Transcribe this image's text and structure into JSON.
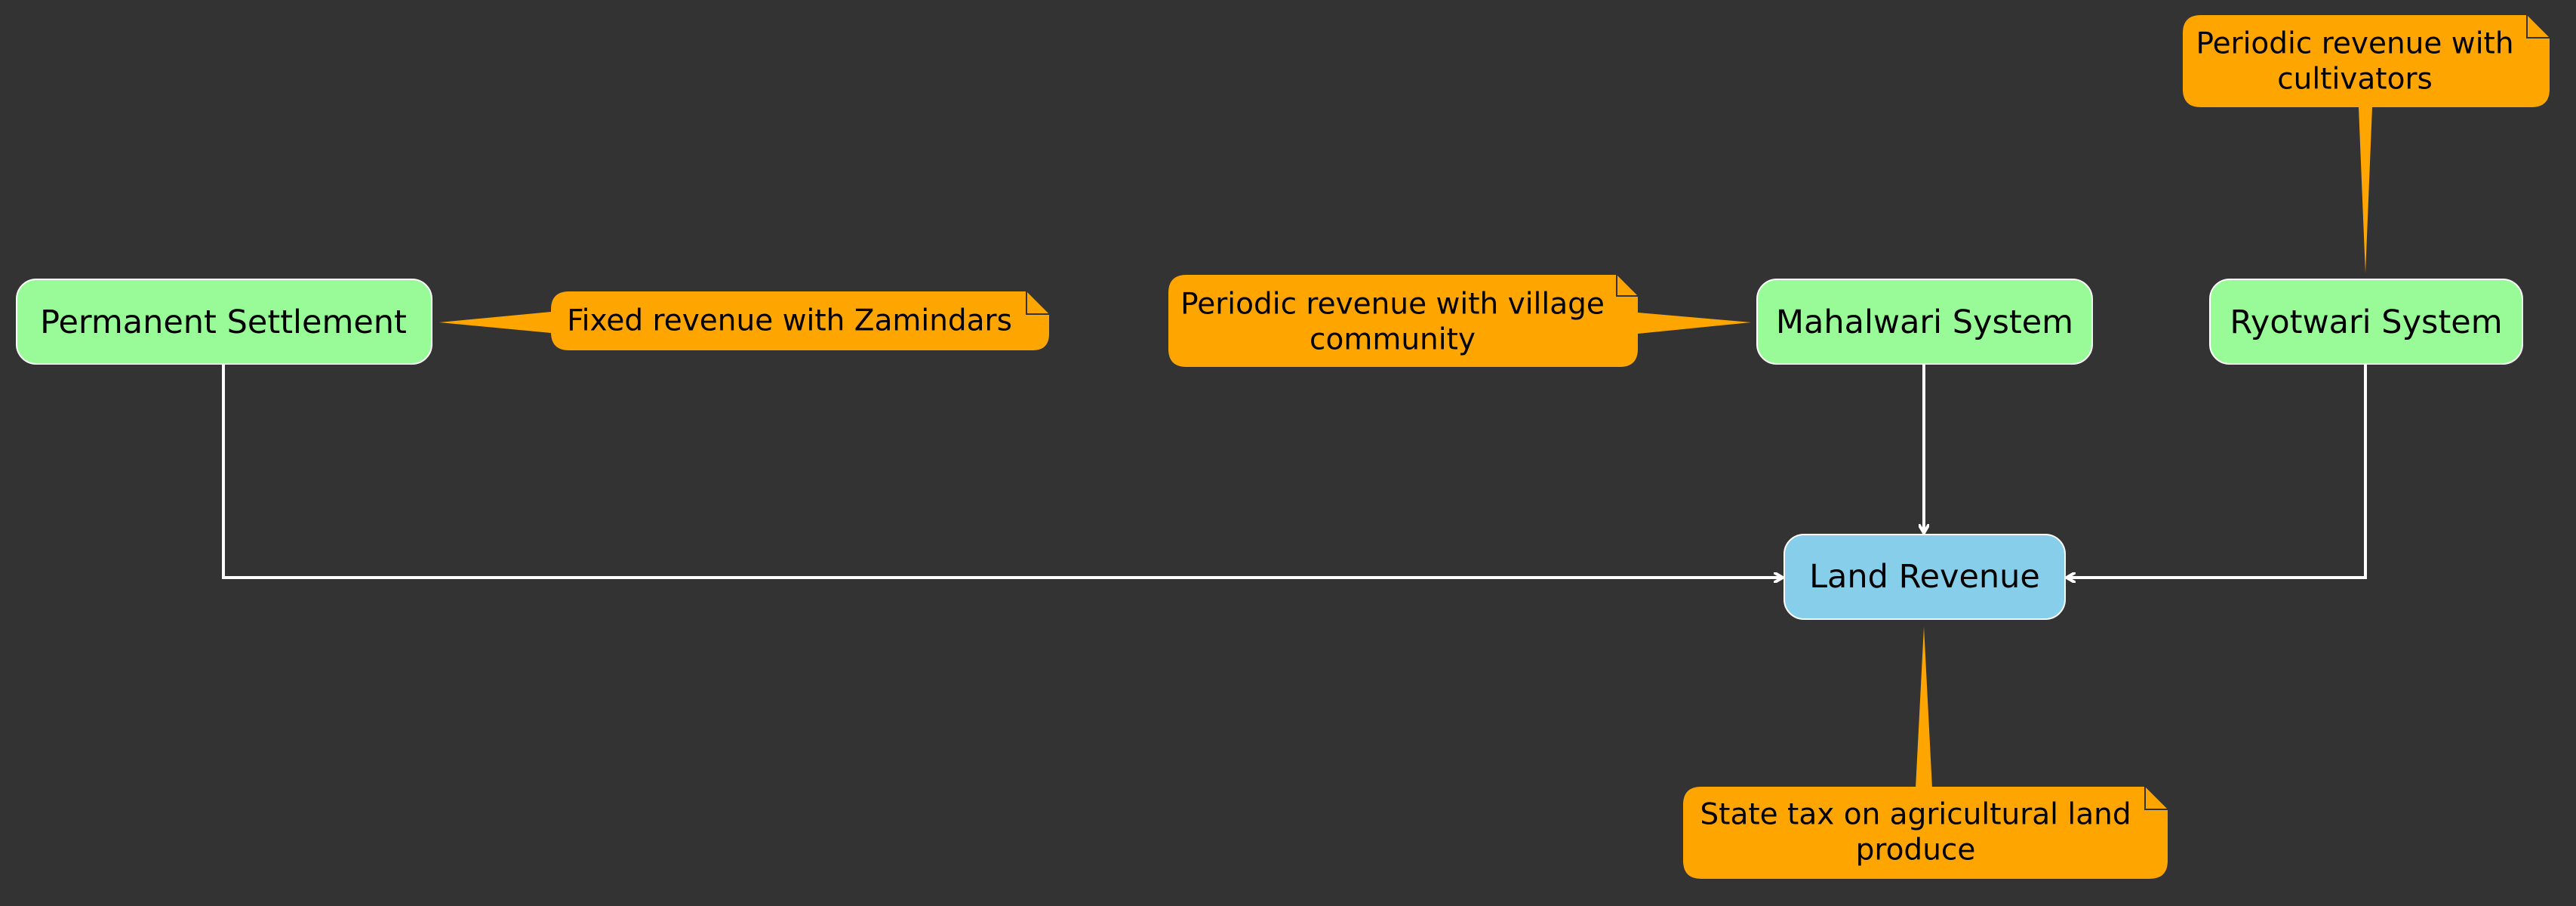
{
  "diagram": {
    "colors": {
      "background": "#333333",
      "system_node_fill": "#98FB98",
      "revenue_node_fill": "#87CEEB",
      "note_fill": "#FFA500",
      "edge": "#FFFFFF"
    },
    "nodes": {
      "permanent_settlement": {
        "label": "Permanent Settlement"
      },
      "mahalwari_system": {
        "label": "Mahalwari System"
      },
      "ryotwari_system": {
        "label": "Ryotwari System"
      },
      "land_revenue": {
        "label": "Land Revenue"
      }
    },
    "notes": {
      "permanent_settlement": {
        "lines": [
          "Fixed revenue with Zamindars"
        ]
      },
      "mahalwari_system": {
        "lines": [
          "Periodic revenue with village",
          "community"
        ]
      },
      "ryotwari_system": {
        "lines": [
          "Periodic revenue with",
          "cultivators"
        ]
      },
      "land_revenue": {
        "lines": [
          "State tax on agricultural land",
          "produce"
        ]
      }
    },
    "edges": [
      {
        "from": "permanent_settlement",
        "to": "land_revenue"
      },
      {
        "from": "mahalwari_system",
        "to": "land_revenue"
      },
      {
        "from": "ryotwari_system",
        "to": "land_revenue"
      }
    ]
  }
}
